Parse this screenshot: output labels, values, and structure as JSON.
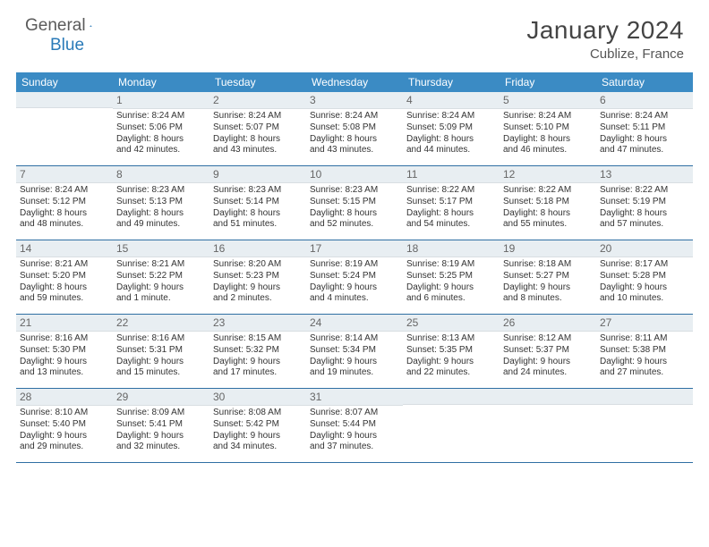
{
  "logo": {
    "part1": "General",
    "part2": "Blue"
  },
  "title": {
    "month": "January 2024",
    "location": "Cublize, France"
  },
  "colors": {
    "header_bar": "#3b8bc4",
    "daynum_bg": "#e8eef2",
    "row_border": "#2f6fa3",
    "text": "#333333",
    "logo_gray": "#5a5a5a",
    "logo_blue": "#2a7ab8"
  },
  "typography": {
    "title_fontsize": 28,
    "location_fontsize": 15,
    "weekday_fontsize": 12,
    "daynum_fontsize": 12,
    "body_fontsize": 10
  },
  "weekdays": [
    "Sunday",
    "Monday",
    "Tuesday",
    "Wednesday",
    "Thursday",
    "Friday",
    "Saturday"
  ],
  "weeks": [
    [
      {
        "day": "",
        "lines": [
          "",
          "",
          "",
          ""
        ]
      },
      {
        "day": "1",
        "lines": [
          "Sunrise: 8:24 AM",
          "Sunset: 5:06 PM",
          "Daylight: 8 hours",
          "and 42 minutes."
        ]
      },
      {
        "day": "2",
        "lines": [
          "Sunrise: 8:24 AM",
          "Sunset: 5:07 PM",
          "Daylight: 8 hours",
          "and 43 minutes."
        ]
      },
      {
        "day": "3",
        "lines": [
          "Sunrise: 8:24 AM",
          "Sunset: 5:08 PM",
          "Daylight: 8 hours",
          "and 43 minutes."
        ]
      },
      {
        "day": "4",
        "lines": [
          "Sunrise: 8:24 AM",
          "Sunset: 5:09 PM",
          "Daylight: 8 hours",
          "and 44 minutes."
        ]
      },
      {
        "day": "5",
        "lines": [
          "Sunrise: 8:24 AM",
          "Sunset: 5:10 PM",
          "Daylight: 8 hours",
          "and 46 minutes."
        ]
      },
      {
        "day": "6",
        "lines": [
          "Sunrise: 8:24 AM",
          "Sunset: 5:11 PM",
          "Daylight: 8 hours",
          "and 47 minutes."
        ]
      }
    ],
    [
      {
        "day": "7",
        "lines": [
          "Sunrise: 8:24 AM",
          "Sunset: 5:12 PM",
          "Daylight: 8 hours",
          "and 48 minutes."
        ]
      },
      {
        "day": "8",
        "lines": [
          "Sunrise: 8:23 AM",
          "Sunset: 5:13 PM",
          "Daylight: 8 hours",
          "and 49 minutes."
        ]
      },
      {
        "day": "9",
        "lines": [
          "Sunrise: 8:23 AM",
          "Sunset: 5:14 PM",
          "Daylight: 8 hours",
          "and 51 minutes."
        ]
      },
      {
        "day": "10",
        "lines": [
          "Sunrise: 8:23 AM",
          "Sunset: 5:15 PM",
          "Daylight: 8 hours",
          "and 52 minutes."
        ]
      },
      {
        "day": "11",
        "lines": [
          "Sunrise: 8:22 AM",
          "Sunset: 5:17 PM",
          "Daylight: 8 hours",
          "and 54 minutes."
        ]
      },
      {
        "day": "12",
        "lines": [
          "Sunrise: 8:22 AM",
          "Sunset: 5:18 PM",
          "Daylight: 8 hours",
          "and 55 minutes."
        ]
      },
      {
        "day": "13",
        "lines": [
          "Sunrise: 8:22 AM",
          "Sunset: 5:19 PM",
          "Daylight: 8 hours",
          "and 57 minutes."
        ]
      }
    ],
    [
      {
        "day": "14",
        "lines": [
          "Sunrise: 8:21 AM",
          "Sunset: 5:20 PM",
          "Daylight: 8 hours",
          "and 59 minutes."
        ]
      },
      {
        "day": "15",
        "lines": [
          "Sunrise: 8:21 AM",
          "Sunset: 5:22 PM",
          "Daylight: 9 hours",
          "and 1 minute."
        ]
      },
      {
        "day": "16",
        "lines": [
          "Sunrise: 8:20 AM",
          "Sunset: 5:23 PM",
          "Daylight: 9 hours",
          "and 2 minutes."
        ]
      },
      {
        "day": "17",
        "lines": [
          "Sunrise: 8:19 AM",
          "Sunset: 5:24 PM",
          "Daylight: 9 hours",
          "and 4 minutes."
        ]
      },
      {
        "day": "18",
        "lines": [
          "Sunrise: 8:19 AM",
          "Sunset: 5:25 PM",
          "Daylight: 9 hours",
          "and 6 minutes."
        ]
      },
      {
        "day": "19",
        "lines": [
          "Sunrise: 8:18 AM",
          "Sunset: 5:27 PM",
          "Daylight: 9 hours",
          "and 8 minutes."
        ]
      },
      {
        "day": "20",
        "lines": [
          "Sunrise: 8:17 AM",
          "Sunset: 5:28 PM",
          "Daylight: 9 hours",
          "and 10 minutes."
        ]
      }
    ],
    [
      {
        "day": "21",
        "lines": [
          "Sunrise: 8:16 AM",
          "Sunset: 5:30 PM",
          "Daylight: 9 hours",
          "and 13 minutes."
        ]
      },
      {
        "day": "22",
        "lines": [
          "Sunrise: 8:16 AM",
          "Sunset: 5:31 PM",
          "Daylight: 9 hours",
          "and 15 minutes."
        ]
      },
      {
        "day": "23",
        "lines": [
          "Sunrise: 8:15 AM",
          "Sunset: 5:32 PM",
          "Daylight: 9 hours",
          "and 17 minutes."
        ]
      },
      {
        "day": "24",
        "lines": [
          "Sunrise: 8:14 AM",
          "Sunset: 5:34 PM",
          "Daylight: 9 hours",
          "and 19 minutes."
        ]
      },
      {
        "day": "25",
        "lines": [
          "Sunrise: 8:13 AM",
          "Sunset: 5:35 PM",
          "Daylight: 9 hours",
          "and 22 minutes."
        ]
      },
      {
        "day": "26",
        "lines": [
          "Sunrise: 8:12 AM",
          "Sunset: 5:37 PM",
          "Daylight: 9 hours",
          "and 24 minutes."
        ]
      },
      {
        "day": "27",
        "lines": [
          "Sunrise: 8:11 AM",
          "Sunset: 5:38 PM",
          "Daylight: 9 hours",
          "and 27 minutes."
        ]
      }
    ],
    [
      {
        "day": "28",
        "lines": [
          "Sunrise: 8:10 AM",
          "Sunset: 5:40 PM",
          "Daylight: 9 hours",
          "and 29 minutes."
        ]
      },
      {
        "day": "29",
        "lines": [
          "Sunrise: 8:09 AM",
          "Sunset: 5:41 PM",
          "Daylight: 9 hours",
          "and 32 minutes."
        ]
      },
      {
        "day": "30",
        "lines": [
          "Sunrise: 8:08 AM",
          "Sunset: 5:42 PM",
          "Daylight: 9 hours",
          "and 34 minutes."
        ]
      },
      {
        "day": "31",
        "lines": [
          "Sunrise: 8:07 AM",
          "Sunset: 5:44 PM",
          "Daylight: 9 hours",
          "and 37 minutes."
        ]
      },
      {
        "day": "",
        "lines": [
          "",
          "",
          "",
          ""
        ]
      },
      {
        "day": "",
        "lines": [
          "",
          "",
          "",
          ""
        ]
      },
      {
        "day": "",
        "lines": [
          "",
          "",
          "",
          ""
        ]
      }
    ]
  ]
}
